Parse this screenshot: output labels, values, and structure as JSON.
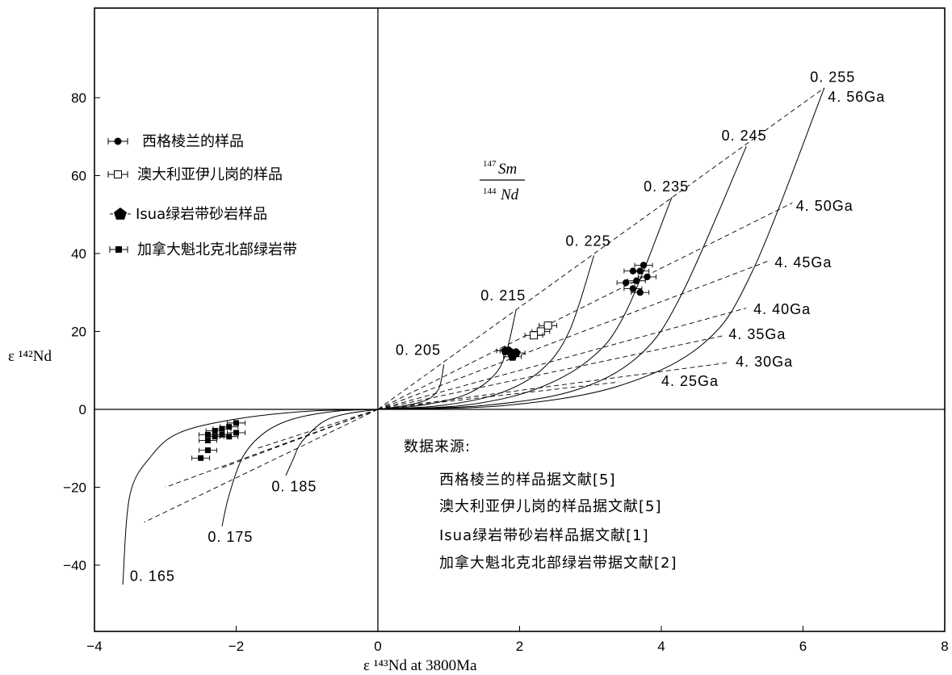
{
  "chart_data": {
    "type": "scatter",
    "xlabel": "ε ¹⁴³Nd  at 3800Ma",
    "ylabel": "ε ¹⁴²Nd",
    "xlim": [
      -4,
      8
    ],
    "ylim": [
      -57,
      103
    ],
    "x_ticks": [
      -4,
      -2,
      0,
      2,
      4,
      6,
      8
    ],
    "x_tick_labels": [
      "−4",
      "−2",
      "0",
      "2",
      "4",
      "6",
      "8"
    ],
    "y_ticks": [
      -40,
      -20,
      0,
      20,
      40,
      60,
      80
    ],
    "y_tick_labels": [
      "−40",
      "−20",
      "0",
      "20",
      "40",
      "60",
      "80"
    ],
    "ratio_label": {
      "num_sup": "147",
      "num": "Sm",
      "den_sup": "144",
      "den": "Nd"
    },
    "legend": [
      {
        "label": "西格棱兰的样品",
        "marker": "circle"
      },
      {
        "label": "澳大利亚伊儿岗的样品",
        "marker": "open-square"
      },
      {
        "label": "Isua绿岩带砂岩样品",
        "marker": "pentagon"
      },
      {
        "label": "加拿大魁北克北部绿岩带",
        "marker": "filled-square"
      }
    ],
    "source_title": "数据来源:",
    "sources": [
      "西格棱兰的样品据文献[5]",
      "澳大利亚伊儿岗的样品据文献[5]",
      "Isua绿岩带砂岩样品据文献[1]",
      "加拿大魁北克北部绿岩带据文献[2]"
    ],
    "isochrons": [
      {
        "label": "0.165",
        "x": [
          0,
          -1.0,
          -2.0,
          -2.8,
          -3.2,
          -3.5,
          -3.6
        ],
        "y": [
          0,
          -0.5,
          -2.5,
          -6,
          -12,
          -22,
          -45
        ]
      },
      {
        "label": "0.175",
        "x": [
          0,
          -0.6,
          -1.2,
          -1.6,
          -1.9,
          -2.1,
          -2.2
        ],
        "y": [
          0,
          -0.5,
          -2.5,
          -6,
          -12,
          -22,
          -30
        ]
      },
      {
        "label": "0.185",
        "x": [
          0,
          -0.4,
          -0.7,
          -0.9,
          -1.1,
          -1.2,
          -1.3
        ],
        "y": [
          0,
          -1.0,
          -2.5,
          -5,
          -9,
          -13,
          -17
        ]
      },
      {
        "label": "0.205",
        "x": [
          0,
          0.4,
          0.7,
          0.85,
          0.9,
          0.93
        ],
        "y": [
          0,
          1,
          2.5,
          5,
          8,
          11.5
        ]
      },
      {
        "label": "0.215",
        "x": [
          0,
          0.6,
          1.2,
          1.6,
          1.8,
          1.95
        ],
        "y": [
          0,
          1,
          3.5,
          8,
          14,
          25.5
        ]
      },
      {
        "label": "0.225",
        "x": [
          0,
          0.9,
          1.7,
          2.3,
          2.7,
          3.05
        ],
        "y": [
          0,
          1,
          4,
          10,
          20,
          39.5
        ]
      },
      {
        "label": "0.235",
        "x": [
          0,
          1.2,
          2.2,
          3.0,
          3.5,
          4.15
        ],
        "y": [
          0,
          1,
          5,
          13,
          25,
          54.5
        ]
      },
      {
        "label": "0.245",
        "x": [
          0,
          1.5,
          2.8,
          3.7,
          4.3,
          5.2
        ],
        "y": [
          0,
          1,
          5,
          14,
          30,
          67.5
        ]
      },
      {
        "label": "0.255",
        "x": [
          0,
          1.8,
          3.4,
          4.6,
          5.3,
          6.3
        ],
        "y": [
          0,
          1,
          6,
          17,
          36,
          82.5
        ]
      }
    ],
    "isochron_label_pos": [
      {
        "x": -3.5,
        "y": -44
      },
      {
        "x": -2.4,
        "y": -34
      },
      {
        "x": -1.5,
        "y": -21
      },
      {
        "x": 0.25,
        "y": 14
      },
      {
        "x": 1.45,
        "y": 28
      },
      {
        "x": 2.65,
        "y": 42
      },
      {
        "x": 3.75,
        "y": 56
      },
      {
        "x": 4.85,
        "y": 69
      },
      {
        "x": 6.1,
        "y": 84
      }
    ],
    "age_labels": [
      {
        "label": "4. 56Ga",
        "x": 6.35,
        "y": 79
      },
      {
        "label": "4. 50Ga",
        "x": 5.9,
        "y": 51
      },
      {
        "label": "4. 45Ga",
        "x": 5.6,
        "y": 36.5
      },
      {
        "label": "4. 40Ga",
        "x": 5.3,
        "y": 24.5
      },
      {
        "label": "4. 35Ga",
        "x": 4.95,
        "y": 18
      },
      {
        "label": "4. 30Ga",
        "x": 5.05,
        "y": 11
      },
      {
        "label": "4. 25Ga",
        "x": 4.0,
        "y": 6
      }
    ],
    "age_lines": [
      {
        "x1": 0,
        "y1": 0,
        "x2": 6.3,
        "y2": 82.5
      },
      {
        "x1": 0,
        "y1": 0,
        "x2": 5.85,
        "y2": 53
      },
      {
        "x1": 0,
        "y1": 0,
        "x2": 5.5,
        "y2": 38
      },
      {
        "x1": 0,
        "y1": 0,
        "x2": 5.2,
        "y2": 26
      },
      {
        "x1": 0,
        "y1": 0,
        "x2": 4.9,
        "y2": 19
      },
      {
        "x1": 0,
        "y1": 0,
        "x2": 4.95,
        "y2": 12
      },
      {
        "x1": 0,
        "y1": 0,
        "x2": 3.4,
        "y2": 7
      },
      {
        "x1": 0,
        "y1": 0,
        "x2": -3.3,
        "y2": -29
      },
      {
        "x1": 0,
        "y1": 0,
        "x2": -3.0,
        "y2": -20
      },
      {
        "x1": 0,
        "y1": 0,
        "x2": -2.2,
        "y2": -15
      },
      {
        "x1": 0,
        "y1": 0,
        "x2": -1.7,
        "y2": -10
      }
    ],
    "series": [
      {
        "name": "西格棱兰的样品",
        "marker": "circle",
        "points": [
          [
            3.75,
            37
          ],
          [
            3.7,
            35.5
          ],
          [
            3.6,
            35.5
          ],
          [
            3.8,
            34
          ],
          [
            3.65,
            33
          ],
          [
            3.5,
            32.5
          ],
          [
            3.6,
            31
          ],
          [
            3.7,
            30
          ]
        ]
      },
      {
        "name": "澳大利亚伊儿岗的样品",
        "marker": "open-square",
        "points": [
          [
            2.4,
            21.5
          ],
          [
            2.3,
            20
          ],
          [
            2.2,
            19
          ]
        ]
      },
      {
        "name": "Isua绿岩带砂岩样品",
        "marker": "pentagon",
        "points": [
          [
            1.85,
            15
          ],
          [
            1.95,
            14.5
          ],
          [
            1.9,
            13.5
          ],
          [
            1.8,
            15
          ]
        ]
      },
      {
        "name": "加拿大魁北克北部绿岩带",
        "marker": "filled-square",
        "points": [
          [
            -2.0,
            -3.5
          ],
          [
            -2.1,
            -4.5
          ],
          [
            -2.2,
            -5
          ],
          [
            -2.3,
            -5.5
          ],
          [
            -2.4,
            -6.5
          ],
          [
            -2.2,
            -6.5
          ],
          [
            -2.0,
            -6
          ],
          [
            -2.1,
            -7
          ],
          [
            -2.3,
            -7
          ],
          [
            -2.4,
            -8
          ],
          [
            -2.4,
            -10.5
          ],
          [
            -2.5,
            -12.5
          ]
        ]
      }
    ]
  }
}
